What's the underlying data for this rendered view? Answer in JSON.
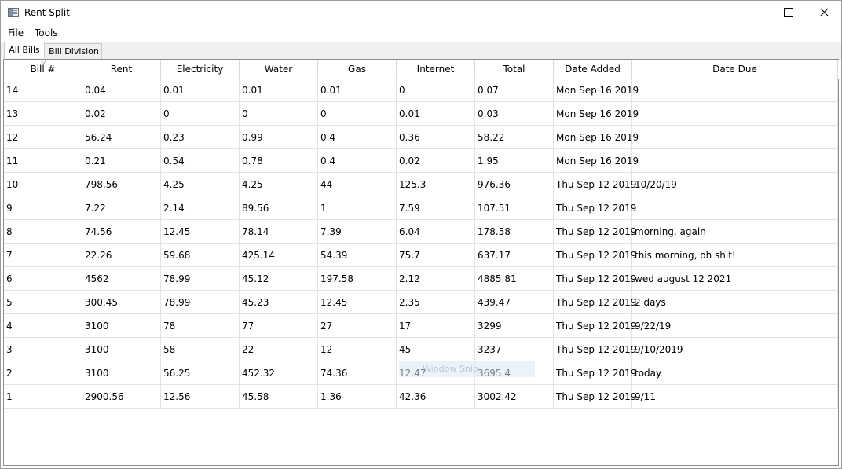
{
  "window": {
    "title": "Rent Split"
  },
  "menu": {
    "file": "File",
    "tools": "Tools"
  },
  "tabs": [
    {
      "label": "All Bills",
      "active": true
    },
    {
      "label": "Bill Division",
      "active": false
    }
  ],
  "table": {
    "columns": [
      "Bill #",
      "Rent",
      "Electricity",
      "Water",
      "Gas",
      "Internet",
      "Total",
      "Date Added",
      "Date Due"
    ],
    "rows": [
      [
        "14",
        "0.04",
        "0.01",
        "0.01",
        "0.01",
        "0",
        "0.07",
        "Mon Sep 16 2019",
        ""
      ],
      [
        "13",
        "0.02",
        "0",
        "0",
        "0",
        "0.01",
        "0.03",
        "Mon Sep 16 2019",
        ""
      ],
      [
        "12",
        "56.24",
        "0.23",
        "0.99",
        "0.4",
        "0.36",
        "58.22",
        "Mon Sep 16 2019",
        ""
      ],
      [
        "11",
        "0.21",
        "0.54",
        "0.78",
        "0.4",
        "0.02",
        "1.95",
        "Mon Sep 16 2019",
        ""
      ],
      [
        "10",
        "798.56",
        "4.25",
        "4.25",
        "44",
        "125.3",
        "976.36",
        "Thu Sep 12 2019",
        "10/20/19"
      ],
      [
        "9",
        "7.22",
        "2.14",
        "89.56",
        "1",
        "7.59",
        "107.51",
        "Thu Sep 12 2019",
        ""
      ],
      [
        "8",
        "74.56",
        "12.45",
        "78.14",
        "7.39",
        "6.04",
        "178.58",
        "Thu Sep 12 2019",
        "morning, again"
      ],
      [
        "7",
        "22.26",
        "59.68",
        "425.14",
        "54.39",
        "75.7",
        "637.17",
        "Thu Sep 12 2019",
        "this morning, oh shit!"
      ],
      [
        "6",
        "4562",
        "78.99",
        "45.12",
        "197.58",
        "2.12",
        "4885.81",
        "Thu Sep 12 2019",
        "wed august 12 2021"
      ],
      [
        "5",
        "300.45",
        "78.99",
        "45.23",
        "12.45",
        "2.35",
        "439.47",
        "Thu Sep 12 2019",
        "2 days"
      ],
      [
        "4",
        "3100",
        "78",
        "77",
        "27",
        "17",
        "3299",
        "Thu Sep 12 2019",
        "9/22/19"
      ],
      [
        "3",
        "3100",
        "58",
        "22",
        "12",
        "45",
        "3237",
        "Thu Sep 12 2019",
        "9/10/2019"
      ],
      [
        "2",
        "3100",
        "56.25",
        "452.32",
        "74.36",
        "12.47",
        "3695.4",
        "Thu Sep 12 2019",
        "today"
      ],
      [
        "1",
        "2900.56",
        "12.56",
        "45.58",
        "1.36",
        "42.36",
        "3002.42",
        "Thu Sep 12 2019",
        "9/11"
      ]
    ]
  },
  "overlay": {
    "ghost_text": "Window Snip"
  }
}
